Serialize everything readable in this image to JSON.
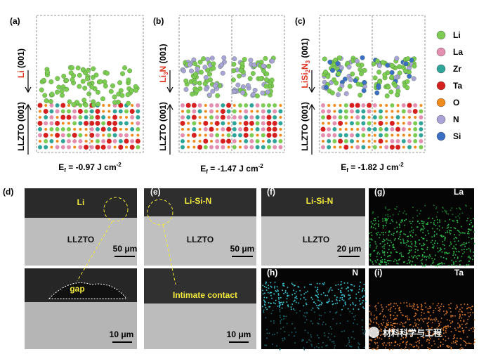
{
  "top_panels": [
    {
      "label": "(a)",
      "adsorbate": [
        "Li",
        " (001)"
      ],
      "substrate": "LLZTO (001)",
      "energy": [
        "E",
        "f",
        " = -0.97 J cm",
        "-2"
      ]
    },
    {
      "label": "(b)",
      "adsorbate": [
        "Li",
        "3",
        "N",
        " (001)"
      ],
      "substrate": "LLZTO (001)",
      "energy": [
        "E",
        "f",
        " = -1.47 J cm",
        "-2"
      ]
    },
    {
      "label": "(c)",
      "adsorbate": [
        "LiSi",
        "2",
        "N",
        "3",
        " (001)"
      ],
      "substrate": "LLZTO (001)",
      "energy": [
        "E",
        "f",
        " = -1.82 J cm",
        "-2"
      ]
    }
  ],
  "legend": [
    {
      "name": "Li",
      "color": "#7ccb52"
    },
    {
      "name": "La",
      "color": "#e58fb0"
    },
    {
      "name": "Zr",
      "color": "#2fa59a"
    },
    {
      "name": "Ta",
      "color": "#d62020"
    },
    {
      "name": "O",
      "color": "#f08a1c"
    },
    {
      "name": "N",
      "color": "#a9a3d8"
    },
    {
      "name": "Si",
      "color": "#3b6fc4"
    }
  ],
  "sem_panels": [
    {
      "label": "(d)",
      "top_label": "Li",
      "middle_label": "LLZTO",
      "scale_top": "50 μm",
      "callout": "gap",
      "scale_bottom": "10 μm"
    },
    {
      "label": "(e)",
      "top_label": "Li-Si-N",
      "middle_label": "LLZTO",
      "scale_top": "50 μm",
      "callout": "Intimate contact",
      "scale_bottom": "10 μm"
    },
    {
      "label": "(f)",
      "top_label": "Li-Si-N",
      "middle_label": "LLZTO",
      "scale_top": "20 μm"
    }
  ],
  "eds_panels": [
    {
      "label": "(g)",
      "element": "La"
    },
    {
      "label": "(h)",
      "element": "N"
    },
    {
      "label": "(i)",
      "element": "Ta"
    }
  ],
  "watermark": "材料科学与工程"
}
